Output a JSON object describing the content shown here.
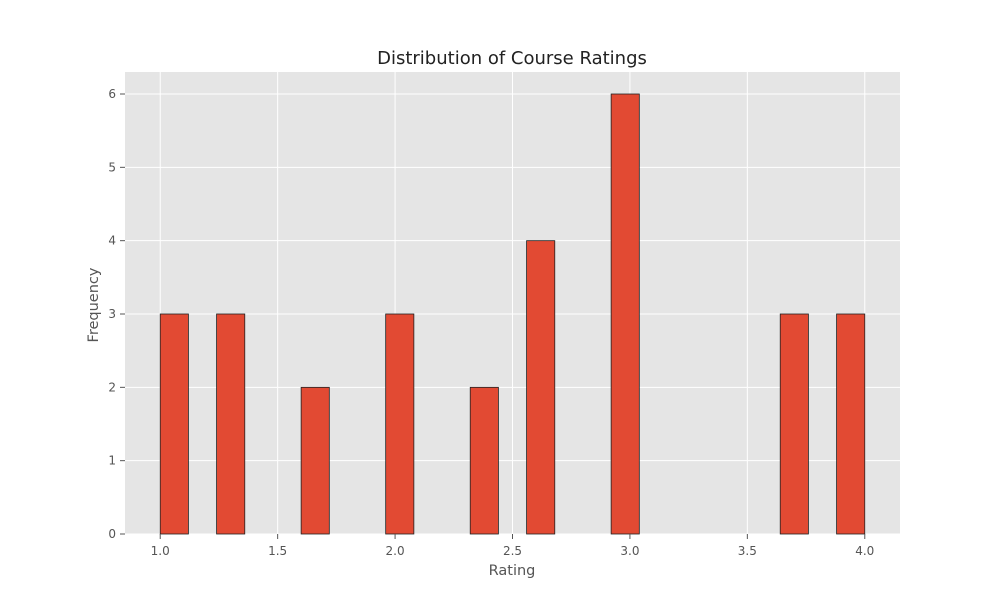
{
  "chart_data": {
    "type": "bar",
    "title": "Distribution of Course Ratings",
    "xlabel": "Rating",
    "ylabel": "Frequency",
    "xlim": [
      0.85,
      4.15
    ],
    "ylim": [
      0,
      6.3
    ],
    "bin_width": 0.12,
    "bars": [
      {
        "x_start": 1.0,
        "value": 3
      },
      {
        "x_start": 1.24,
        "value": 3
      },
      {
        "x_start": 1.6,
        "value": 2
      },
      {
        "x_start": 1.96,
        "value": 3
      },
      {
        "x_start": 2.32,
        "value": 2
      },
      {
        "x_start": 2.56,
        "value": 4
      },
      {
        "x_start": 2.92,
        "value": 6
      },
      {
        "x_start": 3.64,
        "value": 3
      },
      {
        "x_start": 3.88,
        "value": 3
      }
    ],
    "xticks": [
      "1.0",
      "1.5",
      "2.0",
      "2.5",
      "3.0",
      "3.5",
      "4.0"
    ],
    "xtick_values": [
      1.0,
      1.5,
      2.0,
      2.5,
      3.0,
      3.5,
      4.0
    ],
    "yticks": [
      "0",
      "1",
      "2",
      "3",
      "4",
      "5",
      "6"
    ],
    "ytick_values": [
      0,
      1,
      2,
      3,
      4,
      5,
      6
    ],
    "grid": true,
    "colors": {
      "bar_fill": "#E24A33",
      "bar_edge": "#222222",
      "plot_background": "#E5E5E5",
      "grid": "#FFFFFF"
    }
  }
}
